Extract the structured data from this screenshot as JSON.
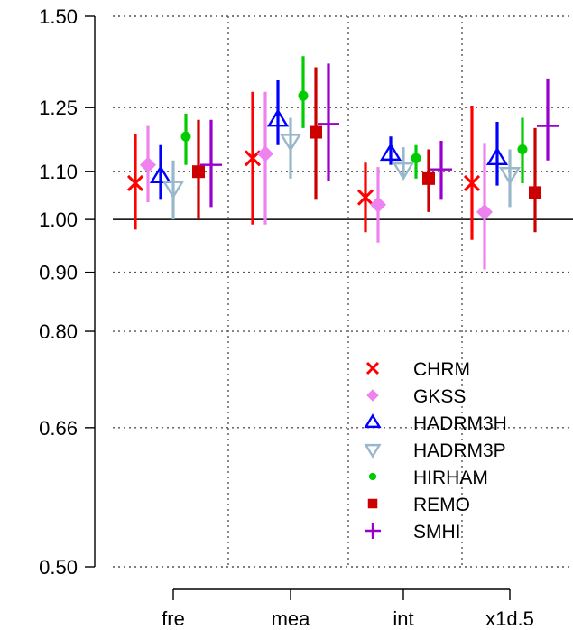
{
  "chart_data": {
    "type": "scatter",
    "title": "",
    "xlabel": "",
    "ylabel": "",
    "y_scale": "log",
    "ylim": [
      0.5,
      1.5
    ],
    "grid": true,
    "reference_line": 1.0,
    "legend_position": "bottom-right",
    "categories": [
      "fre",
      "mea",
      "int",
      "x1d.5"
    ],
    "y_ticks": [
      {
        "value": 0.5,
        "label": "0.50"
      },
      {
        "value": 0.66,
        "label": "0.66"
      },
      {
        "value": 0.8,
        "label": "0.80"
      },
      {
        "value": 0.9,
        "label": "0.90"
      },
      {
        "value": 1.0,
        "label": "1.00"
      },
      {
        "value": 1.1,
        "label": "1.10"
      },
      {
        "value": 1.25,
        "label": "1.25"
      },
      {
        "value": 1.5,
        "label": "1.50"
      }
    ],
    "series": [
      {
        "name": "CHRM",
        "color": "#ff0000",
        "marker": "x",
        "values": [
          1.075,
          1.13,
          1.045,
          1.075
        ],
        "lower": [
          0.98,
          0.99,
          0.975,
          0.96
        ],
        "upper": [
          1.185,
          1.29,
          1.12,
          1.255
        ]
      },
      {
        "name": "GKSS",
        "color": "#ee82ee",
        "marker": "diamond",
        "values": [
          1.115,
          1.14,
          1.03,
          1.015
        ],
        "lower": [
          1.035,
          0.99,
          0.955,
          0.905
        ],
        "upper": [
          1.205,
          1.29,
          1.11,
          1.165
        ]
      },
      {
        "name": "HADRM3H",
        "color": "#0000ff",
        "marker": "triangle-up",
        "values": [
          1.09,
          1.22,
          1.14,
          1.13
        ],
        "lower": [
          1.04,
          1.16,
          1.115,
          1.07
        ],
        "upper": [
          1.16,
          1.32,
          1.18,
          1.215
        ]
      },
      {
        "name": "HADRM3P",
        "color": "#9ab8cc",
        "marker": "triangle-down",
        "values": [
          1.065,
          1.17,
          1.105,
          1.095
        ],
        "lower": [
          1.0,
          1.085,
          1.085,
          1.025
        ],
        "upper": [
          1.125,
          1.225,
          1.155,
          1.15
        ]
      },
      {
        "name": "HIRHAM",
        "color": "#00cc00",
        "marker": "circle",
        "values": [
          1.18,
          1.28,
          1.13,
          1.15
        ],
        "lower": [
          1.115,
          1.2,
          1.085,
          1.075
        ],
        "upper": [
          1.235,
          1.385,
          1.16,
          1.225
        ]
      },
      {
        "name": "REMO",
        "color": "#cc0000",
        "marker": "square",
        "values": [
          1.1,
          1.19,
          1.085,
          1.055
        ],
        "lower": [
          1.0,
          1.04,
          1.015,
          0.975
        ],
        "upper": [
          1.22,
          1.355,
          1.15,
          1.2
        ]
      },
      {
        "name": "SMHI",
        "color": "#9900cc",
        "marker": "plus",
        "values": [
          1.115,
          1.21,
          1.105,
          1.205
        ],
        "lower": [
          1.025,
          1.08,
          1.04,
          1.125
        ],
        "upper": [
          1.22,
          1.365,
          1.17,
          1.325
        ]
      }
    ]
  }
}
